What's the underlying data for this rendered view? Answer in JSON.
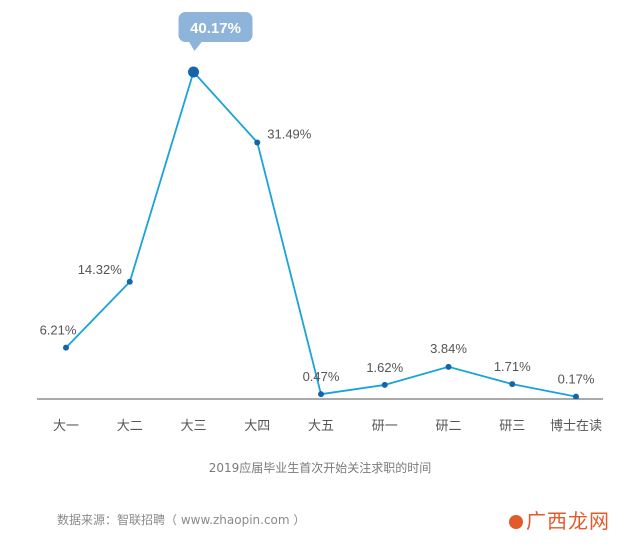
{
  "chart_data": {
    "type": "line",
    "categories": [
      "大一",
      "大二",
      "大三",
      "大四",
      "大五",
      "研一",
      "研二",
      "研三",
      "博士在读"
    ],
    "values": [
      6.21,
      14.32,
      40.17,
      31.49,
      0.47,
      1.62,
      3.84,
      1.71,
      0.17
    ],
    "value_labels": [
      "6.21%",
      "14.32%",
      "40.17%",
      "31.49%",
      "0.47%",
      "1.62%",
      "3.84%",
      "1.71%",
      "0.17%"
    ],
    "highlight_index": 2,
    "ylim": [
      0,
      45
    ],
    "grid": false,
    "colors": {
      "line": "#1aa3d9",
      "marker": "#1565a8",
      "callout": "#8fb4d9",
      "axis": "#555555"
    }
  },
  "caption": "2019应届毕业生首次开始关注求职的时间",
  "source": "数据来源：智联招聘（ www.zhaopin.com ）",
  "watermark": "广西龙网"
}
